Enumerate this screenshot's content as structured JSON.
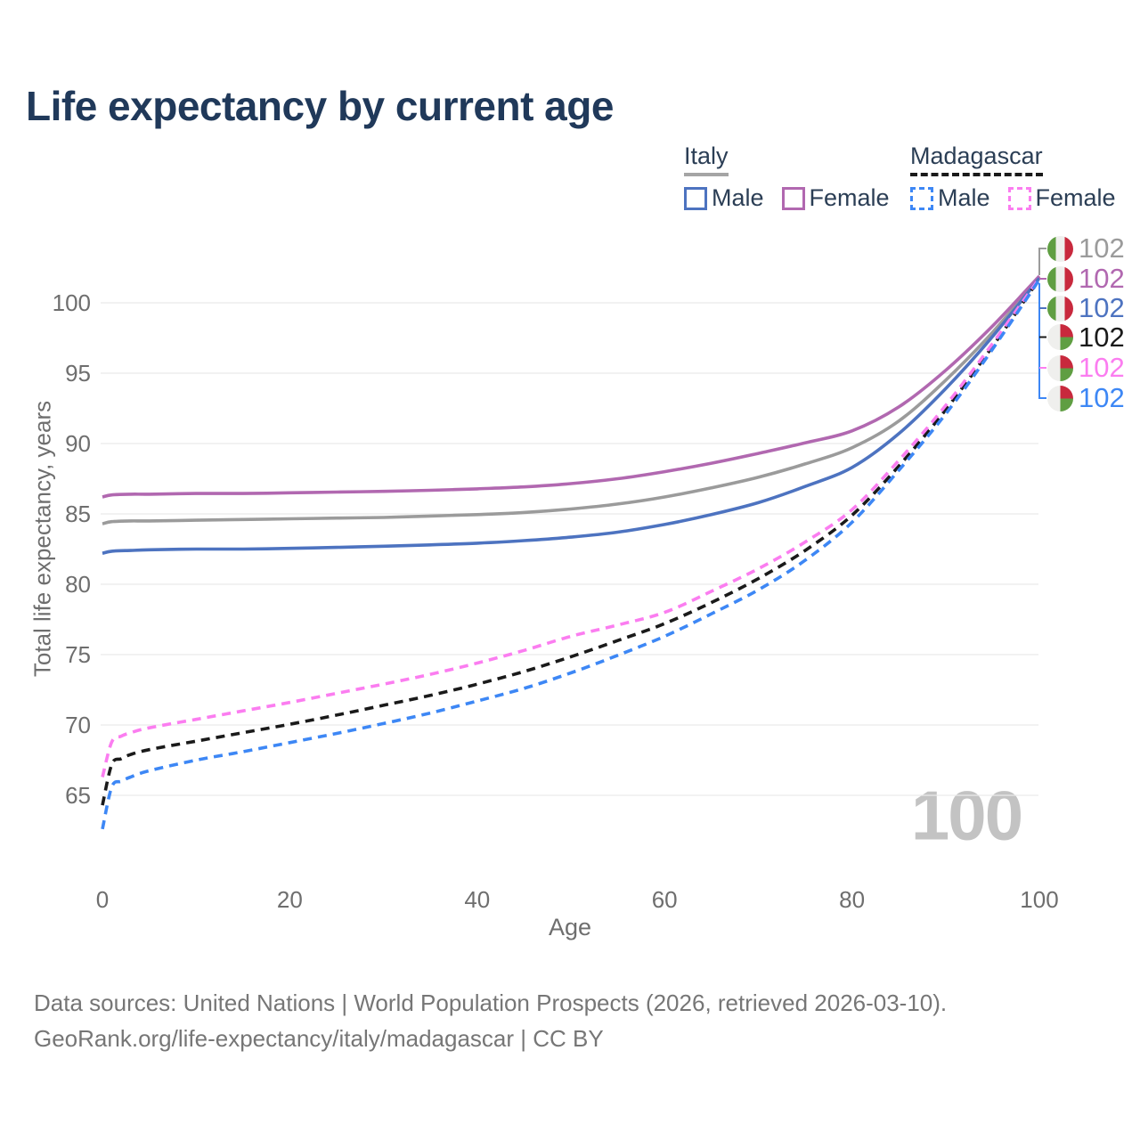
{
  "title": "Life expectancy by current age",
  "legend": {
    "groups": [
      {
        "name": "Italy",
        "style": "solid",
        "items": [
          {
            "label": "Male",
            "color": "#4d73c0"
          },
          {
            "label": "Female",
            "color": "#b168b0"
          }
        ]
      },
      {
        "name": "Madagascar",
        "style": "dashed",
        "items": [
          {
            "label": "Male",
            "color": "#3d87f5"
          },
          {
            "label": "Female",
            "color": "#fb7df0"
          }
        ]
      }
    ]
  },
  "chart_data": {
    "type": "line",
    "title": "Life expectancy by current age",
    "xlabel": "Age",
    "ylabel": "Total life expectancy, years",
    "x_ticks": [
      0,
      20,
      40,
      60,
      80,
      100
    ],
    "y_ticks": [
      65,
      70,
      75,
      80,
      85,
      90,
      95,
      100
    ],
    "xlim": [
      0,
      100
    ],
    "ylim": [
      62,
      102
    ],
    "grid": "horizontal",
    "legend_position": "top-right",
    "watermark": "100",
    "series": [
      {
        "id": "italy-both",
        "name": "Italy — Both sexes",
        "country": "Italy",
        "sex": "Both sexes",
        "line": "solid",
        "color": "#9b9b9b",
        "end_label": "102",
        "points": [
          [
            0,
            84.3
          ],
          [
            1,
            84.45
          ],
          [
            3,
            84.5
          ],
          [
            5,
            84.5
          ],
          [
            10,
            84.55
          ],
          [
            15,
            84.6
          ],
          [
            20,
            84.65
          ],
          [
            25,
            84.7
          ],
          [
            30,
            84.75
          ],
          [
            35,
            84.85
          ],
          [
            40,
            84.95
          ],
          [
            45,
            85.1
          ],
          [
            50,
            85.35
          ],
          [
            55,
            85.7
          ],
          [
            60,
            86.2
          ],
          [
            65,
            86.85
          ],
          [
            70,
            87.6
          ],
          [
            75,
            88.55
          ],
          [
            80,
            89.7
          ],
          [
            85,
            91.6
          ],
          [
            90,
            94.5
          ],
          [
            95,
            97.9
          ],
          [
            100,
            101.8
          ]
        ]
      },
      {
        "id": "italy-female",
        "name": "Italy — Female",
        "country": "Italy",
        "sex": "Female",
        "line": "solid",
        "color": "#b168b0",
        "end_label": "102",
        "points": [
          [
            0,
            86.2
          ],
          [
            1,
            86.35
          ],
          [
            3,
            86.4
          ],
          [
            5,
            86.4
          ],
          [
            10,
            86.45
          ],
          [
            15,
            86.45
          ],
          [
            20,
            86.5
          ],
          [
            25,
            86.55
          ],
          [
            30,
            86.6
          ],
          [
            35,
            86.68
          ],
          [
            40,
            86.78
          ],
          [
            45,
            86.92
          ],
          [
            50,
            87.15
          ],
          [
            55,
            87.5
          ],
          [
            60,
            88.0
          ],
          [
            65,
            88.6
          ],
          [
            70,
            89.3
          ],
          [
            75,
            90.05
          ],
          [
            80,
            90.9
          ],
          [
            85,
            92.6
          ],
          [
            90,
            95.2
          ],
          [
            95,
            98.35
          ],
          [
            100,
            101.9
          ]
        ]
      },
      {
        "id": "italy-male",
        "name": "Italy — Male",
        "country": "Italy",
        "sex": "Male",
        "line": "solid",
        "color": "#4d73c0",
        "end_label": "102",
        "points": [
          [
            0,
            82.2
          ],
          [
            1,
            82.35
          ],
          [
            3,
            82.4
          ],
          [
            5,
            82.45
          ],
          [
            10,
            82.5
          ],
          [
            15,
            82.5
          ],
          [
            20,
            82.55
          ],
          [
            25,
            82.62
          ],
          [
            30,
            82.7
          ],
          [
            35,
            82.8
          ],
          [
            40,
            82.92
          ],
          [
            45,
            83.1
          ],
          [
            50,
            83.35
          ],
          [
            55,
            83.7
          ],
          [
            60,
            84.25
          ],
          [
            65,
            84.95
          ],
          [
            70,
            85.8
          ],
          [
            75,
            86.95
          ],
          [
            80,
            88.3
          ],
          [
            85,
            90.7
          ],
          [
            90,
            93.9
          ],
          [
            95,
            97.6
          ],
          [
            100,
            101.75
          ]
        ]
      },
      {
        "id": "madagascar-both",
        "name": "Madagascar — Both sexes",
        "country": "Madagascar",
        "sex": "Both sexes",
        "line": "dashed",
        "color": "#1a1a1a",
        "end_label": "102",
        "points": [
          [
            0,
            64.3
          ],
          [
            1,
            67.2
          ],
          [
            2,
            67.6
          ],
          [
            3,
            67.9
          ],
          [
            5,
            68.25
          ],
          [
            10,
            68.85
          ],
          [
            15,
            69.45
          ],
          [
            20,
            70.05
          ],
          [
            25,
            70.7
          ],
          [
            30,
            71.4
          ],
          [
            35,
            72.1
          ],
          [
            40,
            72.9
          ],
          [
            45,
            73.8
          ],
          [
            50,
            74.85
          ],
          [
            55,
            76.0
          ],
          [
            60,
            77.2
          ],
          [
            65,
            78.7
          ],
          [
            70,
            80.4
          ],
          [
            75,
            82.4
          ],
          [
            80,
            84.9
          ],
          [
            85,
            88.4
          ],
          [
            90,
            92.4
          ],
          [
            95,
            96.9
          ],
          [
            100,
            101.7
          ]
        ]
      },
      {
        "id": "madagascar-female",
        "name": "Madagascar — Female",
        "country": "Madagascar",
        "sex": "Female",
        "line": "dashed",
        "color": "#fb7df0",
        "end_label": "102",
        "points": [
          [
            0,
            66.3
          ],
          [
            1,
            68.8
          ],
          [
            2,
            69.2
          ],
          [
            3,
            69.45
          ],
          [
            5,
            69.8
          ],
          [
            10,
            70.4
          ],
          [
            15,
            71.0
          ],
          [
            20,
            71.6
          ],
          [
            25,
            72.25
          ],
          [
            30,
            72.9
          ],
          [
            35,
            73.6
          ],
          [
            40,
            74.4
          ],
          [
            45,
            75.3
          ],
          [
            50,
            76.3
          ],
          [
            55,
            77.1
          ],
          [
            60,
            78.0
          ],
          [
            65,
            79.5
          ],
          [
            70,
            81.1
          ],
          [
            75,
            83.0
          ],
          [
            80,
            85.3
          ],
          [
            85,
            88.8
          ],
          [
            90,
            92.7
          ],
          [
            95,
            97.1
          ],
          [
            100,
            101.75
          ]
        ]
      },
      {
        "id": "madagascar-male",
        "name": "Madagascar — Male",
        "country": "Madagascar",
        "sex": "Male",
        "line": "dashed",
        "color": "#3d87f5",
        "end_label": "102",
        "points": [
          [
            0,
            62.6
          ],
          [
            1,
            65.6
          ],
          [
            2,
            66.0
          ],
          [
            3,
            66.3
          ],
          [
            5,
            66.75
          ],
          [
            10,
            67.5
          ],
          [
            15,
            68.1
          ],
          [
            20,
            68.75
          ],
          [
            25,
            69.4
          ],
          [
            30,
            70.1
          ],
          [
            35,
            70.85
          ],
          [
            40,
            71.7
          ],
          [
            45,
            72.6
          ],
          [
            50,
            73.7
          ],
          [
            55,
            74.95
          ],
          [
            60,
            76.3
          ],
          [
            65,
            77.9
          ],
          [
            70,
            79.6
          ],
          [
            75,
            81.7
          ],
          [
            80,
            84.4
          ],
          [
            85,
            88.1
          ],
          [
            90,
            92.1
          ],
          [
            95,
            96.7
          ],
          [
            100,
            101.65
          ]
        ]
      }
    ]
  },
  "end_labels": [
    {
      "value": "102",
      "flag": "italy",
      "color": "#9b9b9b",
      "series": "italy-both"
    },
    {
      "value": "102",
      "flag": "italy",
      "color": "#b168b0",
      "series": "italy-female"
    },
    {
      "value": "102",
      "flag": "italy",
      "color": "#4d73c0",
      "series": "italy-male"
    },
    {
      "value": "102",
      "flag": "madagascar",
      "color": "#1a1a1a",
      "series": "madagascar-both"
    },
    {
      "value": "102",
      "flag": "madagascar",
      "color": "#fb7df0",
      "series": "madagascar-female"
    },
    {
      "value": "102",
      "flag": "madagascar",
      "color": "#3d87f5",
      "series": "madagascar-male"
    }
  ],
  "footer": {
    "line1": "Data sources: United Nations | World Population Prospects (2026, retrieved 2026-03-10).",
    "line2": "GeoRank.org/life-expectancy/italy/madagascar | CC BY"
  },
  "colors": {
    "title": "#20395a",
    "axis_text": "#6e6e6e",
    "gridline": "#e9e9e9",
    "watermark": "#c3c3c3"
  }
}
